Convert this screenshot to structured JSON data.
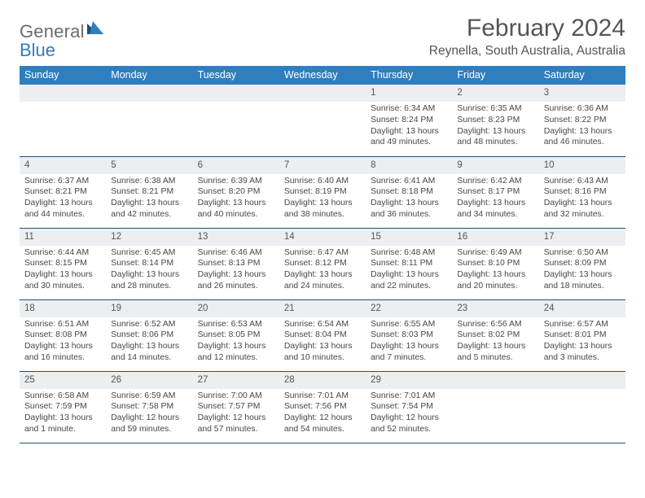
{
  "brand": {
    "general": "General",
    "blue": "Blue"
  },
  "header": {
    "month": "February 2024",
    "location": "Reynella, South Australia, Australia"
  },
  "colors": {
    "headerBar": "#2f7ec0",
    "dayStripe": "#eceff1",
    "rule": "#1e4f7a",
    "text": "#474747",
    "titleText": "#555555"
  },
  "weekdays": [
    "Sunday",
    "Monday",
    "Tuesday",
    "Wednesday",
    "Thursday",
    "Friday",
    "Saturday"
  ],
  "labels": {
    "sunrise": "Sunrise:",
    "sunset": "Sunset:",
    "daylight": "Daylight:"
  },
  "weeks": [
    [
      null,
      null,
      null,
      null,
      {
        "n": "1",
        "sr": "6:34 AM",
        "ss": "8:24 PM",
        "dl": "13 hours and 49 minutes."
      },
      {
        "n": "2",
        "sr": "6:35 AM",
        "ss": "8:23 PM",
        "dl": "13 hours and 48 minutes."
      },
      {
        "n": "3",
        "sr": "6:36 AM",
        "ss": "8:22 PM",
        "dl": "13 hours and 46 minutes."
      }
    ],
    [
      {
        "n": "4",
        "sr": "6:37 AM",
        "ss": "8:21 PM",
        "dl": "13 hours and 44 minutes."
      },
      {
        "n": "5",
        "sr": "6:38 AM",
        "ss": "8:21 PM",
        "dl": "13 hours and 42 minutes."
      },
      {
        "n": "6",
        "sr": "6:39 AM",
        "ss": "8:20 PM",
        "dl": "13 hours and 40 minutes."
      },
      {
        "n": "7",
        "sr": "6:40 AM",
        "ss": "8:19 PM",
        "dl": "13 hours and 38 minutes."
      },
      {
        "n": "8",
        "sr": "6:41 AM",
        "ss": "8:18 PM",
        "dl": "13 hours and 36 minutes."
      },
      {
        "n": "9",
        "sr": "6:42 AM",
        "ss": "8:17 PM",
        "dl": "13 hours and 34 minutes."
      },
      {
        "n": "10",
        "sr": "6:43 AM",
        "ss": "8:16 PM",
        "dl": "13 hours and 32 minutes."
      }
    ],
    [
      {
        "n": "11",
        "sr": "6:44 AM",
        "ss": "8:15 PM",
        "dl": "13 hours and 30 minutes."
      },
      {
        "n": "12",
        "sr": "6:45 AM",
        "ss": "8:14 PM",
        "dl": "13 hours and 28 minutes."
      },
      {
        "n": "13",
        "sr": "6:46 AM",
        "ss": "8:13 PM",
        "dl": "13 hours and 26 minutes."
      },
      {
        "n": "14",
        "sr": "6:47 AM",
        "ss": "8:12 PM",
        "dl": "13 hours and 24 minutes."
      },
      {
        "n": "15",
        "sr": "6:48 AM",
        "ss": "8:11 PM",
        "dl": "13 hours and 22 minutes."
      },
      {
        "n": "16",
        "sr": "6:49 AM",
        "ss": "8:10 PM",
        "dl": "13 hours and 20 minutes."
      },
      {
        "n": "17",
        "sr": "6:50 AM",
        "ss": "8:09 PM",
        "dl": "13 hours and 18 minutes."
      }
    ],
    [
      {
        "n": "18",
        "sr": "6:51 AM",
        "ss": "8:08 PM",
        "dl": "13 hours and 16 minutes."
      },
      {
        "n": "19",
        "sr": "6:52 AM",
        "ss": "8:06 PM",
        "dl": "13 hours and 14 minutes."
      },
      {
        "n": "20",
        "sr": "6:53 AM",
        "ss": "8:05 PM",
        "dl": "13 hours and 12 minutes."
      },
      {
        "n": "21",
        "sr": "6:54 AM",
        "ss": "8:04 PM",
        "dl": "13 hours and 10 minutes."
      },
      {
        "n": "22",
        "sr": "6:55 AM",
        "ss": "8:03 PM",
        "dl": "13 hours and 7 minutes."
      },
      {
        "n": "23",
        "sr": "6:56 AM",
        "ss": "8:02 PM",
        "dl": "13 hours and 5 minutes."
      },
      {
        "n": "24",
        "sr": "6:57 AM",
        "ss": "8:01 PM",
        "dl": "13 hours and 3 minutes."
      }
    ],
    [
      {
        "n": "25",
        "sr": "6:58 AM",
        "ss": "7:59 PM",
        "dl": "13 hours and 1 minute."
      },
      {
        "n": "26",
        "sr": "6:59 AM",
        "ss": "7:58 PM",
        "dl": "12 hours and 59 minutes."
      },
      {
        "n": "27",
        "sr": "7:00 AM",
        "ss": "7:57 PM",
        "dl": "12 hours and 57 minutes."
      },
      {
        "n": "28",
        "sr": "7:01 AM",
        "ss": "7:56 PM",
        "dl": "12 hours and 54 minutes."
      },
      {
        "n": "29",
        "sr": "7:01 AM",
        "ss": "7:54 PM",
        "dl": "12 hours and 52 minutes."
      },
      null,
      null
    ]
  ]
}
